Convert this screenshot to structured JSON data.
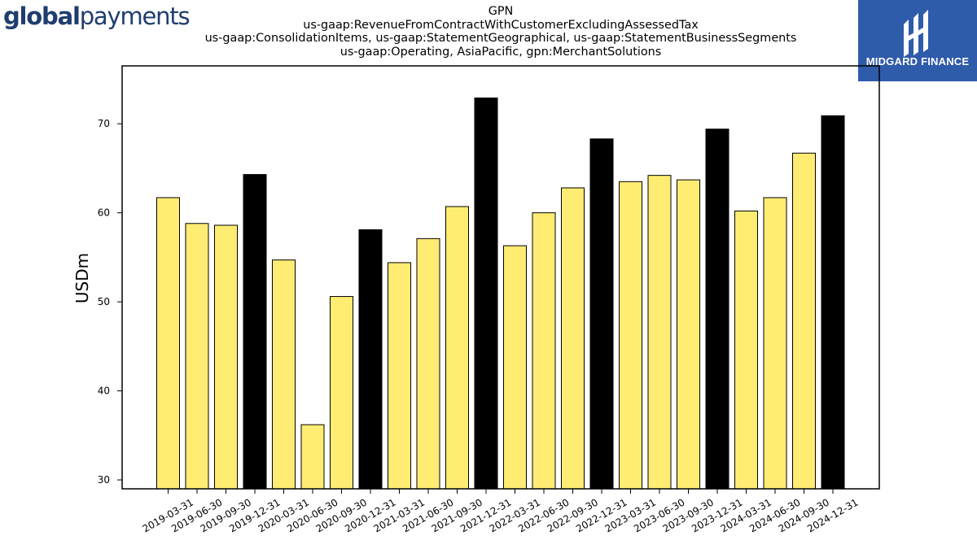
{
  "header": {
    "logo_bold": "global",
    "logo_light": "payments",
    "badge_text": "MIDGARD FINANCE"
  },
  "chart_data": {
    "type": "bar",
    "title_lines": [
      "GPN",
      "us-gaap:RevenueFromContractWithCustomerExcludingAssessedTax",
      "us-gaap:ConsolidationItems, us-gaap:StatementGeographical, us-gaap:StatementBusinessSegments",
      "us-gaap:Operating, AsiaPacific, gpn:MerchantSolutions"
    ],
    "xlabel": "",
    "ylabel": "USDm",
    "ylim": [
      29,
      76.5
    ],
    "yticks": [
      30,
      40,
      50,
      60,
      70
    ],
    "grid": false,
    "colors": {
      "quarter": "#ffec73",
      "year_end": "#000000",
      "edge": "#000000"
    },
    "categories": [
      "2019-03-31",
      "2019-06-30",
      "2019-09-30",
      "2019-12-31",
      "2020-03-31",
      "2020-06-30",
      "2020-09-30",
      "2020-12-31",
      "2021-03-31",
      "2021-06-30",
      "2021-09-30",
      "2021-12-31",
      "2022-03-31",
      "2022-06-30",
      "2022-09-30",
      "2022-12-31",
      "2023-03-31",
      "2023-06-30",
      "2023-09-30",
      "2023-12-31",
      "2024-03-31",
      "2024-06-30",
      "2024-09-30",
      "2024-12-31"
    ],
    "values": [
      61.7,
      58.8,
      58.6,
      64.3,
      54.7,
      36.2,
      50.6,
      58.1,
      54.4,
      57.1,
      60.7,
      72.9,
      56.3,
      60.0,
      62.8,
      68.3,
      63.5,
      64.2,
      63.7,
      69.4,
      60.2,
      61.7,
      66.7,
      70.9
    ],
    "year_end": [
      false,
      false,
      false,
      true,
      false,
      false,
      false,
      true,
      false,
      false,
      false,
      true,
      false,
      false,
      false,
      true,
      false,
      false,
      false,
      true,
      false,
      false,
      false,
      true
    ]
  }
}
